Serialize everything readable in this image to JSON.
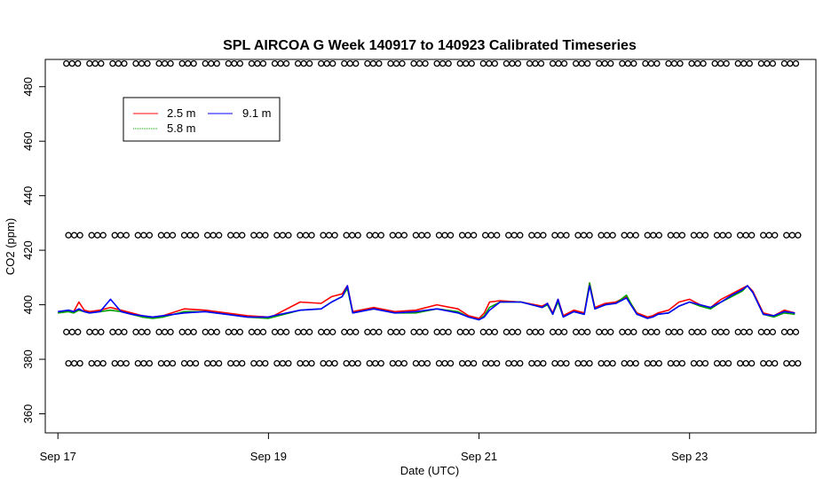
{
  "chart_data": {
    "type": "line",
    "title": "SPL AIRCOA G  Week 140917 to 140923  Calibrated Timeseries",
    "xlabel": "Date (UTC)",
    "ylabel": "CO2 (ppm)",
    "xlim": [
      -0.12,
      7.2
    ],
    "ylim": [
      353,
      490
    ],
    "x_unit": "days since Sep 17 00:00 UTC",
    "x_ticks": [
      {
        "value": 0,
        "label": "Sep 17"
      },
      {
        "value": 2,
        "label": "Sep 19"
      },
      {
        "value": 4,
        "label": "Sep 21"
      },
      {
        "value": 6,
        "label": "Sep 23"
      }
    ],
    "y_ticks": [
      360,
      380,
      400,
      420,
      440,
      460,
      480
    ],
    "legend": {
      "position": "top-left",
      "entries": [
        {
          "name": "2.5 m",
          "color": "#ff0000"
        },
        {
          "name": "5.8 m",
          "color": "#00a000"
        },
        {
          "name": "9.1 m",
          "color": "#0000ff"
        }
      ]
    },
    "calibration_levels": [
      {
        "value": 488.5
      },
      {
        "value": 425.5
      },
      {
        "value": 390.0
      },
      {
        "value": 378.5
      }
    ],
    "series": [
      {
        "name": "2.5 m",
        "color": "#ff0000",
        "x": [
          0,
          0.1,
          0.15,
          0.2,
          0.25,
          0.3,
          0.4,
          0.5,
          0.6,
          0.7,
          0.8,
          0.9,
          1.0,
          1.2,
          1.4,
          1.6,
          1.8,
          2.0,
          2.05,
          2.3,
          2.5,
          2.6,
          2.7,
          2.75,
          2.8,
          3.0,
          3.2,
          3.4,
          3.6,
          3.8,
          3.9,
          4.0,
          4.05,
          4.1,
          4.2,
          4.4,
          4.6,
          4.65,
          4.7,
          4.75,
          4.8,
          4.9,
          5.0,
          5.05,
          5.1,
          5.2,
          5.3,
          5.4,
          5.5,
          5.6,
          5.65,
          5.7,
          5.8,
          5.9,
          6.0,
          6.1,
          6.2,
          6.3,
          6.4,
          6.5,
          6.55,
          6.6,
          6.7,
          6.8,
          6.9,
          7.0
        ],
        "y": [
          397,
          398,
          397.5,
          401,
          398,
          397.5,
          398,
          399,
          398,
          397,
          396,
          395.5,
          396,
          398.5,
          398,
          397,
          396,
          395.5,
          396,
          401,
          400.5,
          403,
          404,
          407,
          397.5,
          399,
          397.5,
          398,
          400,
          398.5,
          396,
          395,
          397,
          401,
          401.5,
          401,
          399.5,
          400.5,
          397,
          402,
          396,
          398,
          397,
          408,
          399,
          400.5,
          401,
          403,
          397,
          395.5,
          396,
          397,
          398,
          401,
          402,
          400,
          399,
          402,
          404,
          406,
          407,
          405,
          397,
          396,
          398,
          397
        ]
      },
      {
        "name": "5.8 m",
        "color": "#00a000",
        "x": [
          0,
          0.1,
          0.15,
          0.2,
          0.25,
          0.3,
          0.4,
          0.5,
          0.6,
          0.7,
          0.8,
          0.9,
          1.0,
          1.2,
          1.4,
          1.6,
          1.8,
          2.0,
          2.05,
          2.3,
          2.5,
          2.6,
          2.7,
          2.75,
          2.8,
          3.0,
          3.2,
          3.4,
          3.6,
          3.8,
          3.9,
          4.0,
          4.05,
          4.1,
          4.2,
          4.4,
          4.6,
          4.65,
          4.7,
          4.75,
          4.8,
          4.9,
          5.0,
          5.05,
          5.1,
          5.2,
          5.3,
          5.4,
          5.5,
          5.6,
          5.65,
          5.7,
          5.8,
          5.9,
          6.0,
          6.1,
          6.2,
          6.3,
          6.4,
          6.5,
          6.55,
          6.6,
          6.7,
          6.8,
          6.9,
          7.0
        ],
        "y": [
          397,
          397.5,
          397,
          398,
          397.5,
          397,
          397.5,
          398,
          397.5,
          396.5,
          395.5,
          395,
          395.5,
          397.5,
          397.5,
          396.5,
          395.5,
          395,
          395.5,
          398,
          398.5,
          401,
          403,
          406,
          397,
          398.5,
          397,
          397,
          398.5,
          397.5,
          395.5,
          394.5,
          396,
          399,
          401,
          401,
          399,
          400,
          396.5,
          401,
          395.5,
          397.5,
          396.5,
          408,
          398.5,
          400,
          400.5,
          403.5,
          396.5,
          395,
          395.5,
          396.5,
          397,
          399.5,
          401,
          399.5,
          398.5,
          401,
          403,
          405,
          407,
          404.5,
          396.5,
          395.5,
          397,
          396.5
        ]
      },
      {
        "name": "9.1 m",
        "color": "#0000ff",
        "x": [
          0,
          0.1,
          0.15,
          0.2,
          0.25,
          0.3,
          0.4,
          0.5,
          0.6,
          0.7,
          0.8,
          0.9,
          1.0,
          1.2,
          1.4,
          1.6,
          1.8,
          2.0,
          2.05,
          2.3,
          2.5,
          2.6,
          2.7,
          2.75,
          2.8,
          3.0,
          3.2,
          3.4,
          3.6,
          3.8,
          3.9,
          4.0,
          4.05,
          4.1,
          4.2,
          4.4,
          4.6,
          4.65,
          4.7,
          4.75,
          4.8,
          4.9,
          5.0,
          5.05,
          5.1,
          5.2,
          5.3,
          5.4,
          5.5,
          5.6,
          5.65,
          5.7,
          5.8,
          5.9,
          6.0,
          6.1,
          6.2,
          6.3,
          6.4,
          6.5,
          6.55,
          6.6,
          6.7,
          6.8,
          6.9,
          7.0
        ],
        "y": [
          397.5,
          398,
          397.5,
          398.5,
          397.5,
          397,
          397.5,
          402,
          397.5,
          396.5,
          396,
          395.5,
          396,
          397,
          397.5,
          396.5,
          395.5,
          395.5,
          396,
          398,
          398.5,
          401,
          403,
          407,
          397,
          398.5,
          397,
          397.5,
          398.5,
          397,
          395.5,
          394.5,
          395.5,
          398,
          401,
          401,
          399,
          400.5,
          396.5,
          402,
          395.5,
          397.5,
          396.5,
          407,
          398.5,
          400,
          400.5,
          402.5,
          396.5,
          395,
          395.5,
          396.5,
          397,
          399.5,
          401,
          400,
          399,
          401,
          403.5,
          405.5,
          407,
          404.5,
          396.5,
          396,
          397.5,
          397
        ]
      }
    ]
  }
}
